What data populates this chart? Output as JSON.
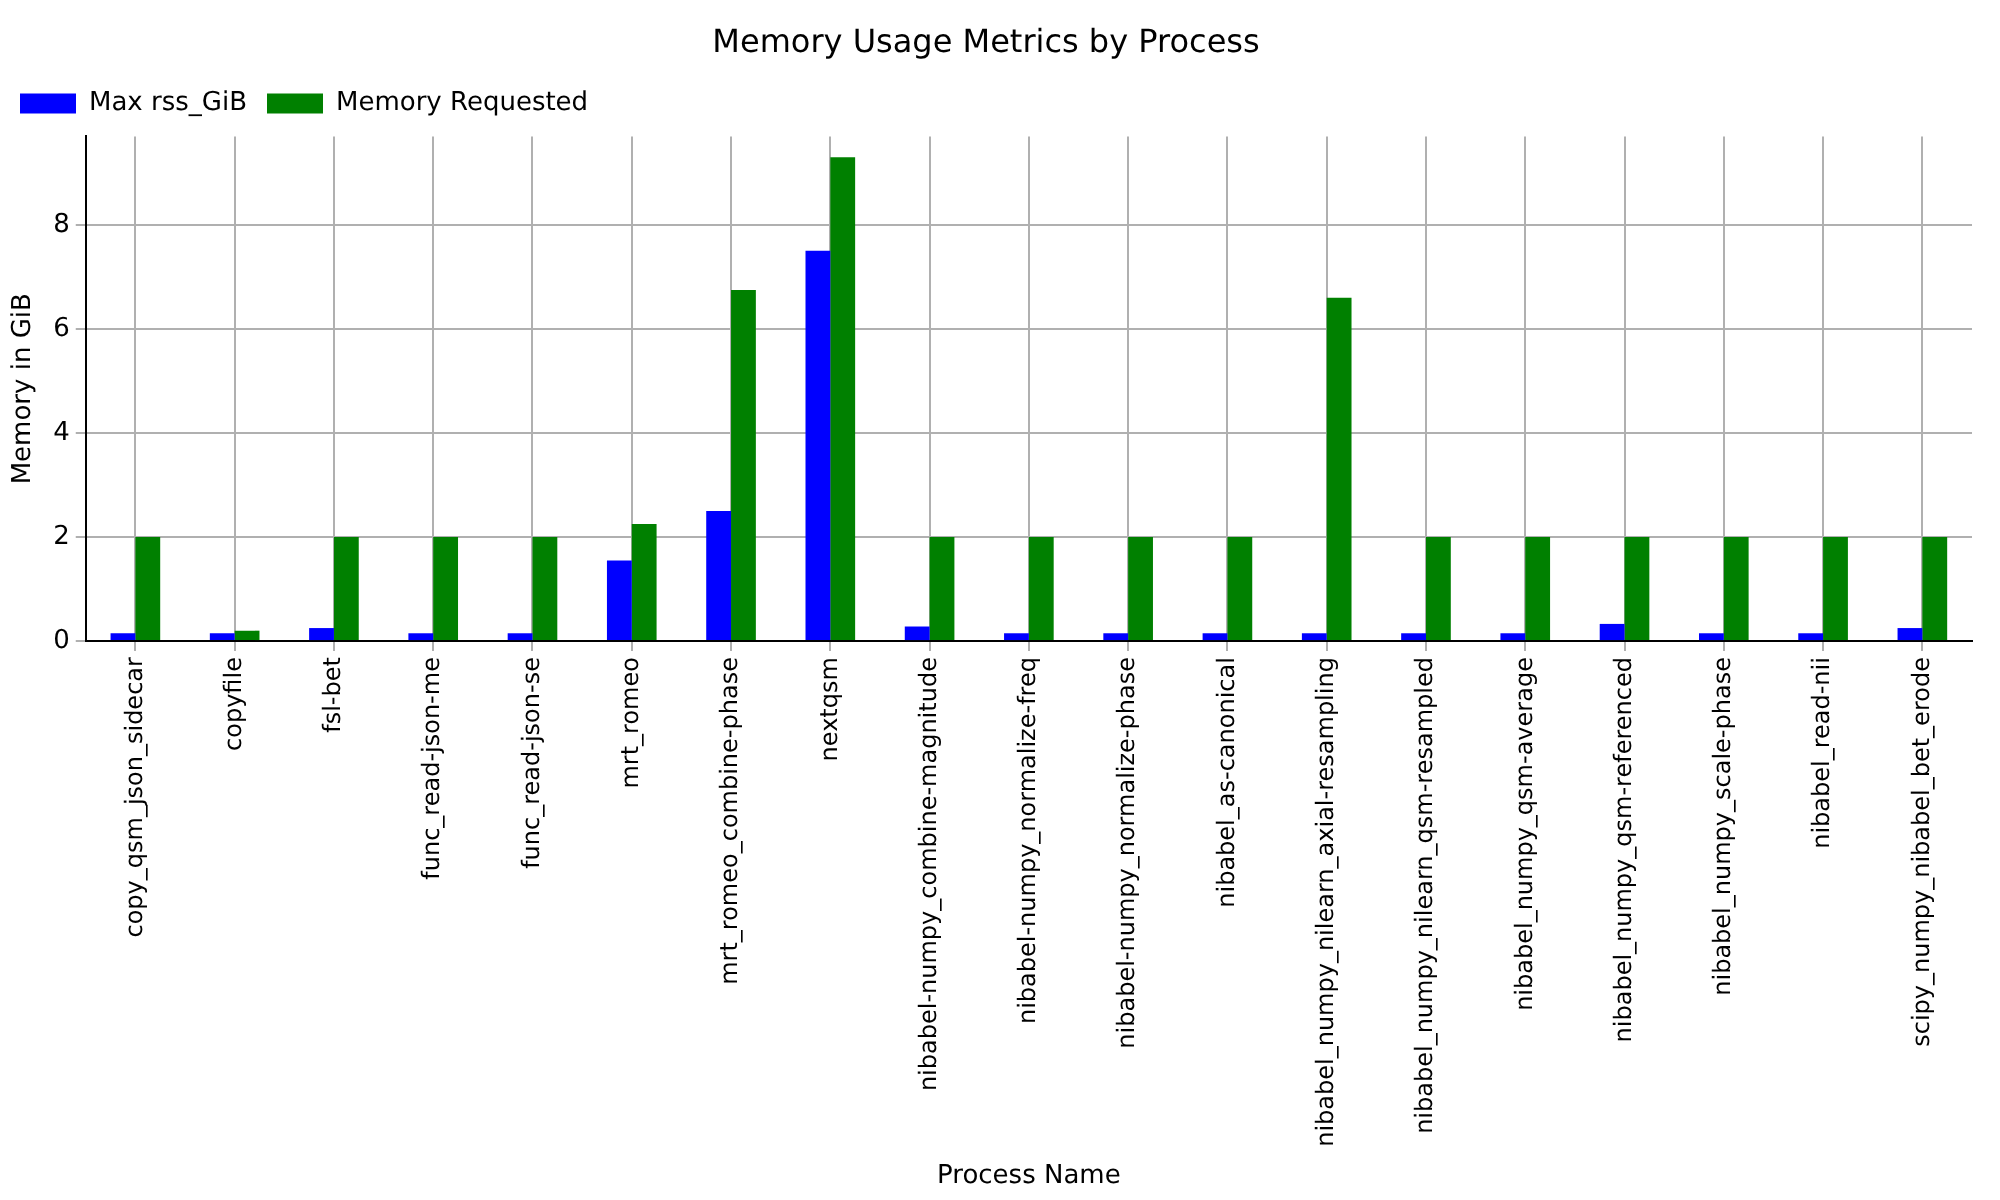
{
  "chart_data": {
    "type": "bar",
    "title": "Memory Usage Metrics by Process",
    "xlabel": "Process Name",
    "ylabel": "Memory in GiB",
    "categories": [
      "copy_qsm_json_sidecar",
      "copyfile",
      "fsl-bet",
      "func_read-json-me",
      "func_read-json-se",
      "mrt_romeo",
      "mrt_romeo_combine-phase",
      "nextqsm",
      "nibabel-numpy_combine-magnitude",
      "nibabel-numpy_normalize-freq",
      "nibabel-numpy_normalize-phase",
      "nibabel_as-canonical",
      "nibabel_numpy_nilearn_axial-resampling",
      "nibabel_numpy_nilearn_qsm-resampled",
      "nibabel_numpy_qsm-average",
      "nibabel_numpy_qsm-referenced",
      "nibabel_numpy_scale-phase",
      "nibabel_read-nii",
      "scipy_numpy_nibabel_bet_erode"
    ],
    "series": [
      {
        "name": "Max rss_GiB",
        "color": "#0000ff",
        "values": [
          0.15,
          0.15,
          0.25,
          0.15,
          0.15,
          1.55,
          2.5,
          7.5,
          0.28,
          0.15,
          0.15,
          0.15,
          0.15,
          0.15,
          0.15,
          0.33,
          0.15,
          0.15,
          0.25
        ]
      },
      {
        "name": "Memory Requested",
        "color": "#008000",
        "values": [
          2,
          0.2,
          2,
          2,
          2,
          2.25,
          6.75,
          9.3,
          2,
          2,
          2,
          2,
          6.6,
          2,
          2,
          2,
          2,
          2,
          2
        ]
      }
    ],
    "ylim": [
      0,
      9.7
    ],
    "yticks": [
      0,
      2,
      4,
      6,
      8
    ],
    "grid": true,
    "legend": "top left"
  }
}
